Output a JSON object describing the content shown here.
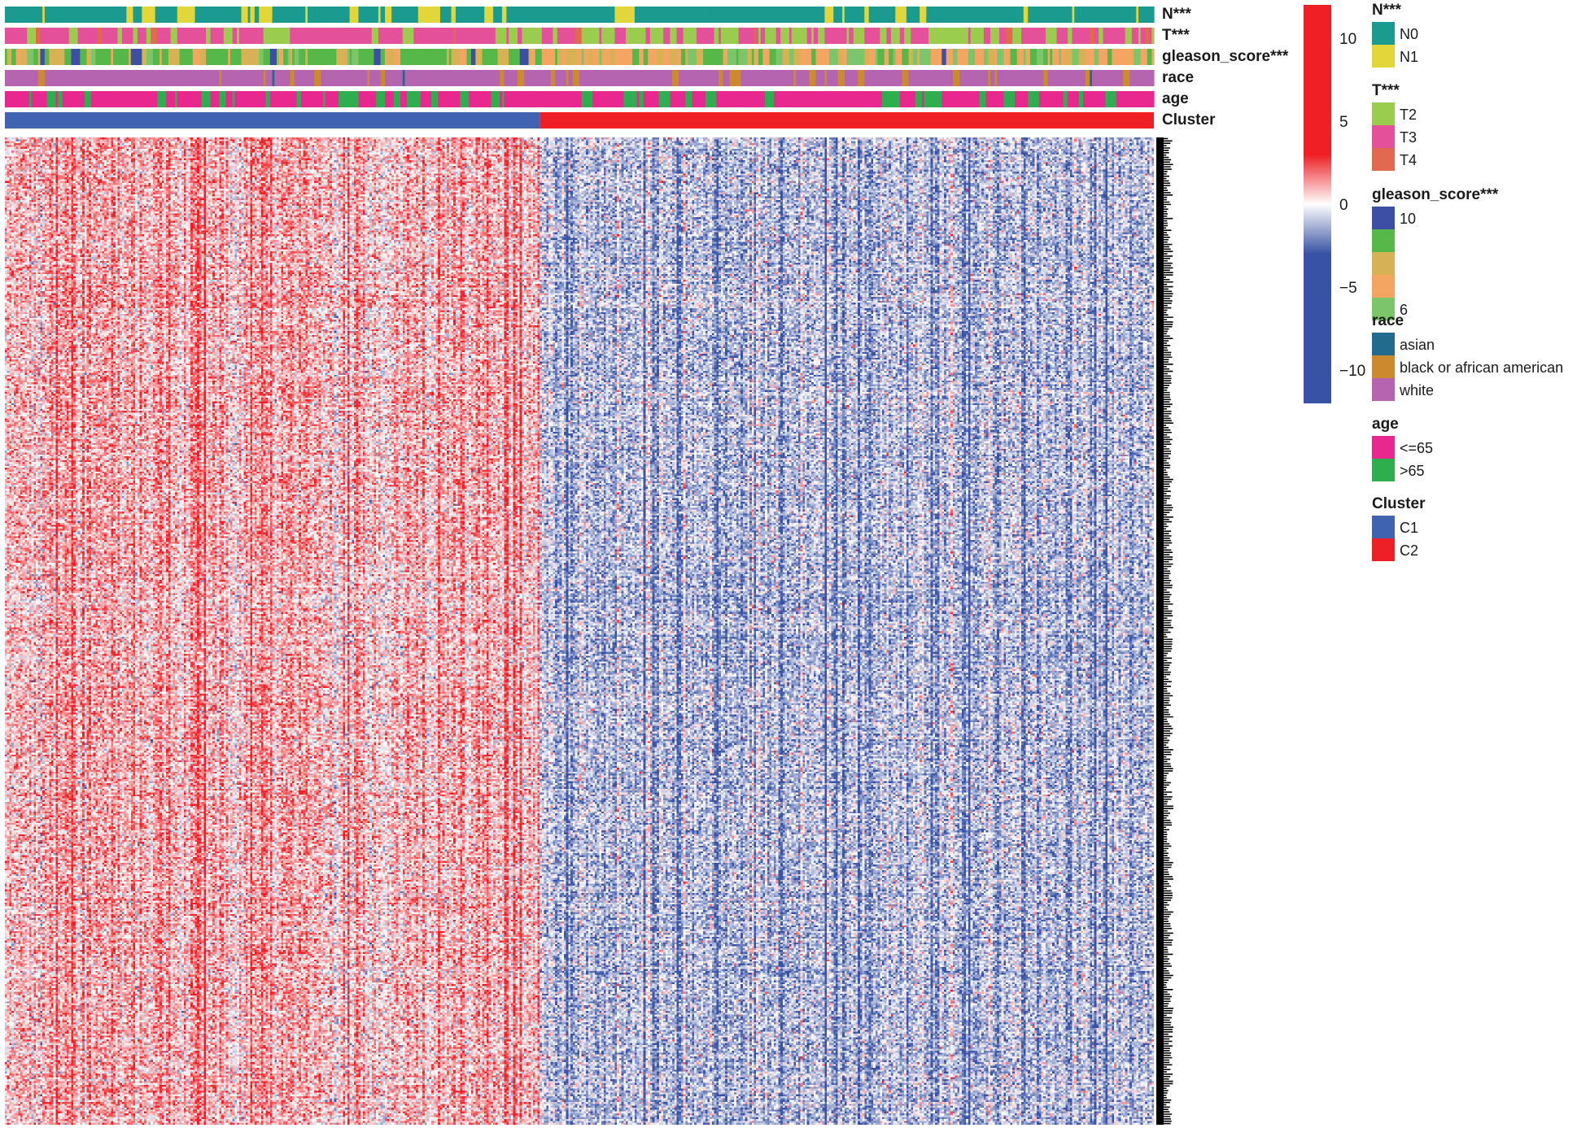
{
  "chart_data": {
    "type": "heatmap",
    "title": "",
    "xlabel": "",
    "ylabel": "",
    "colorbar": {
      "range": [
        -12,
        12
      ],
      "ticks": [
        {
          "value": 10,
          "label": "10"
        },
        {
          "value": 5,
          "label": "5"
        },
        {
          "value": 0,
          "label": "0"
        },
        {
          "value": -5,
          "label": "−5"
        },
        {
          "value": -10,
          "label": "−10"
        }
      ],
      "colors": {
        "low": "#3953a4",
        "mid": "#ffffff",
        "high": "#ee1f25"
      }
    },
    "clusters": [
      {
        "name": "C1",
        "fraction": 0.465,
        "color": "#3f63b0",
        "mean_value": 2.2
      },
      {
        "name": "C2",
        "fraction": 0.535,
        "color": "#ee1f25",
        "mean_value": -2.6
      }
    ],
    "value_range": [
      -12,
      12
    ],
    "tracks": [
      {
        "key": "N",
        "label": "N***",
        "categories": [
          {
            "label": "N0",
            "color": "#1b9a8f",
            "share_c1": 0.7,
            "share_c2": 0.9
          },
          {
            "label": "N1",
            "color": "#e3d63a",
            "share_c1": 0.3,
            "share_c2": 0.1
          }
        ]
      },
      {
        "key": "T",
        "label": "T***",
        "categories": [
          {
            "label": "T2",
            "color": "#9acd4e",
            "share_c1": 0.12,
            "share_c2": 0.45
          },
          {
            "label": "T3",
            "color": "#e5509a",
            "share_c1": 0.85,
            "share_c2": 0.53
          },
          {
            "label": "T4",
            "color": "#e0694f",
            "share_c1": 0.03,
            "share_c2": 0.02
          }
        ]
      },
      {
        "key": "gleason_score",
        "label": "gleason_score***",
        "categories": [
          {
            "label": "10",
            "color": "#3d4fa5",
            "share_c1": 0.03,
            "share_c2": 0.01
          },
          {
            "label": "",
            "color": "#55b848",
            "share_c1": 0.5,
            "share_c2": 0.2
          },
          {
            "label": "",
            "color": "#d6b254",
            "share_c1": 0.3,
            "share_c2": 0.25
          },
          {
            "label": "",
            "color": "#f4a561",
            "share_c1": 0.1,
            "share_c2": 0.34
          },
          {
            "label": "6",
            "color": "#7cc56b",
            "share_c1": 0.07,
            "share_c2": 0.2
          }
        ]
      },
      {
        "key": "race",
        "label": "race",
        "categories": [
          {
            "label": "asian",
            "color": "#226b8e",
            "share_c1": 0.02,
            "share_c2": 0.02
          },
          {
            "label": "black or african american",
            "color": "#cb8a2d",
            "share_c1": 0.1,
            "share_c2": 0.12
          },
          {
            "label": "white",
            "color": "#b565b0",
            "share_c1": 0.88,
            "share_c2": 0.86
          }
        ]
      },
      {
        "key": "age",
        "label": "age",
        "categories": [
          {
            "label": "<=65",
            "color": "#e8288e",
            "share_c1": 0.7,
            "share_c2": 0.72
          },
          {
            "label": ">65",
            "color": "#2fae4f",
            "share_c1": 0.3,
            "share_c2": 0.28
          }
        ]
      },
      {
        "key": "Cluster",
        "label": "Cluster",
        "cluster_track": true,
        "categories": [
          {
            "label": "C1",
            "color": "#3f63b0"
          },
          {
            "label": "C2",
            "color": "#ee1f25"
          }
        ]
      }
    ]
  }
}
